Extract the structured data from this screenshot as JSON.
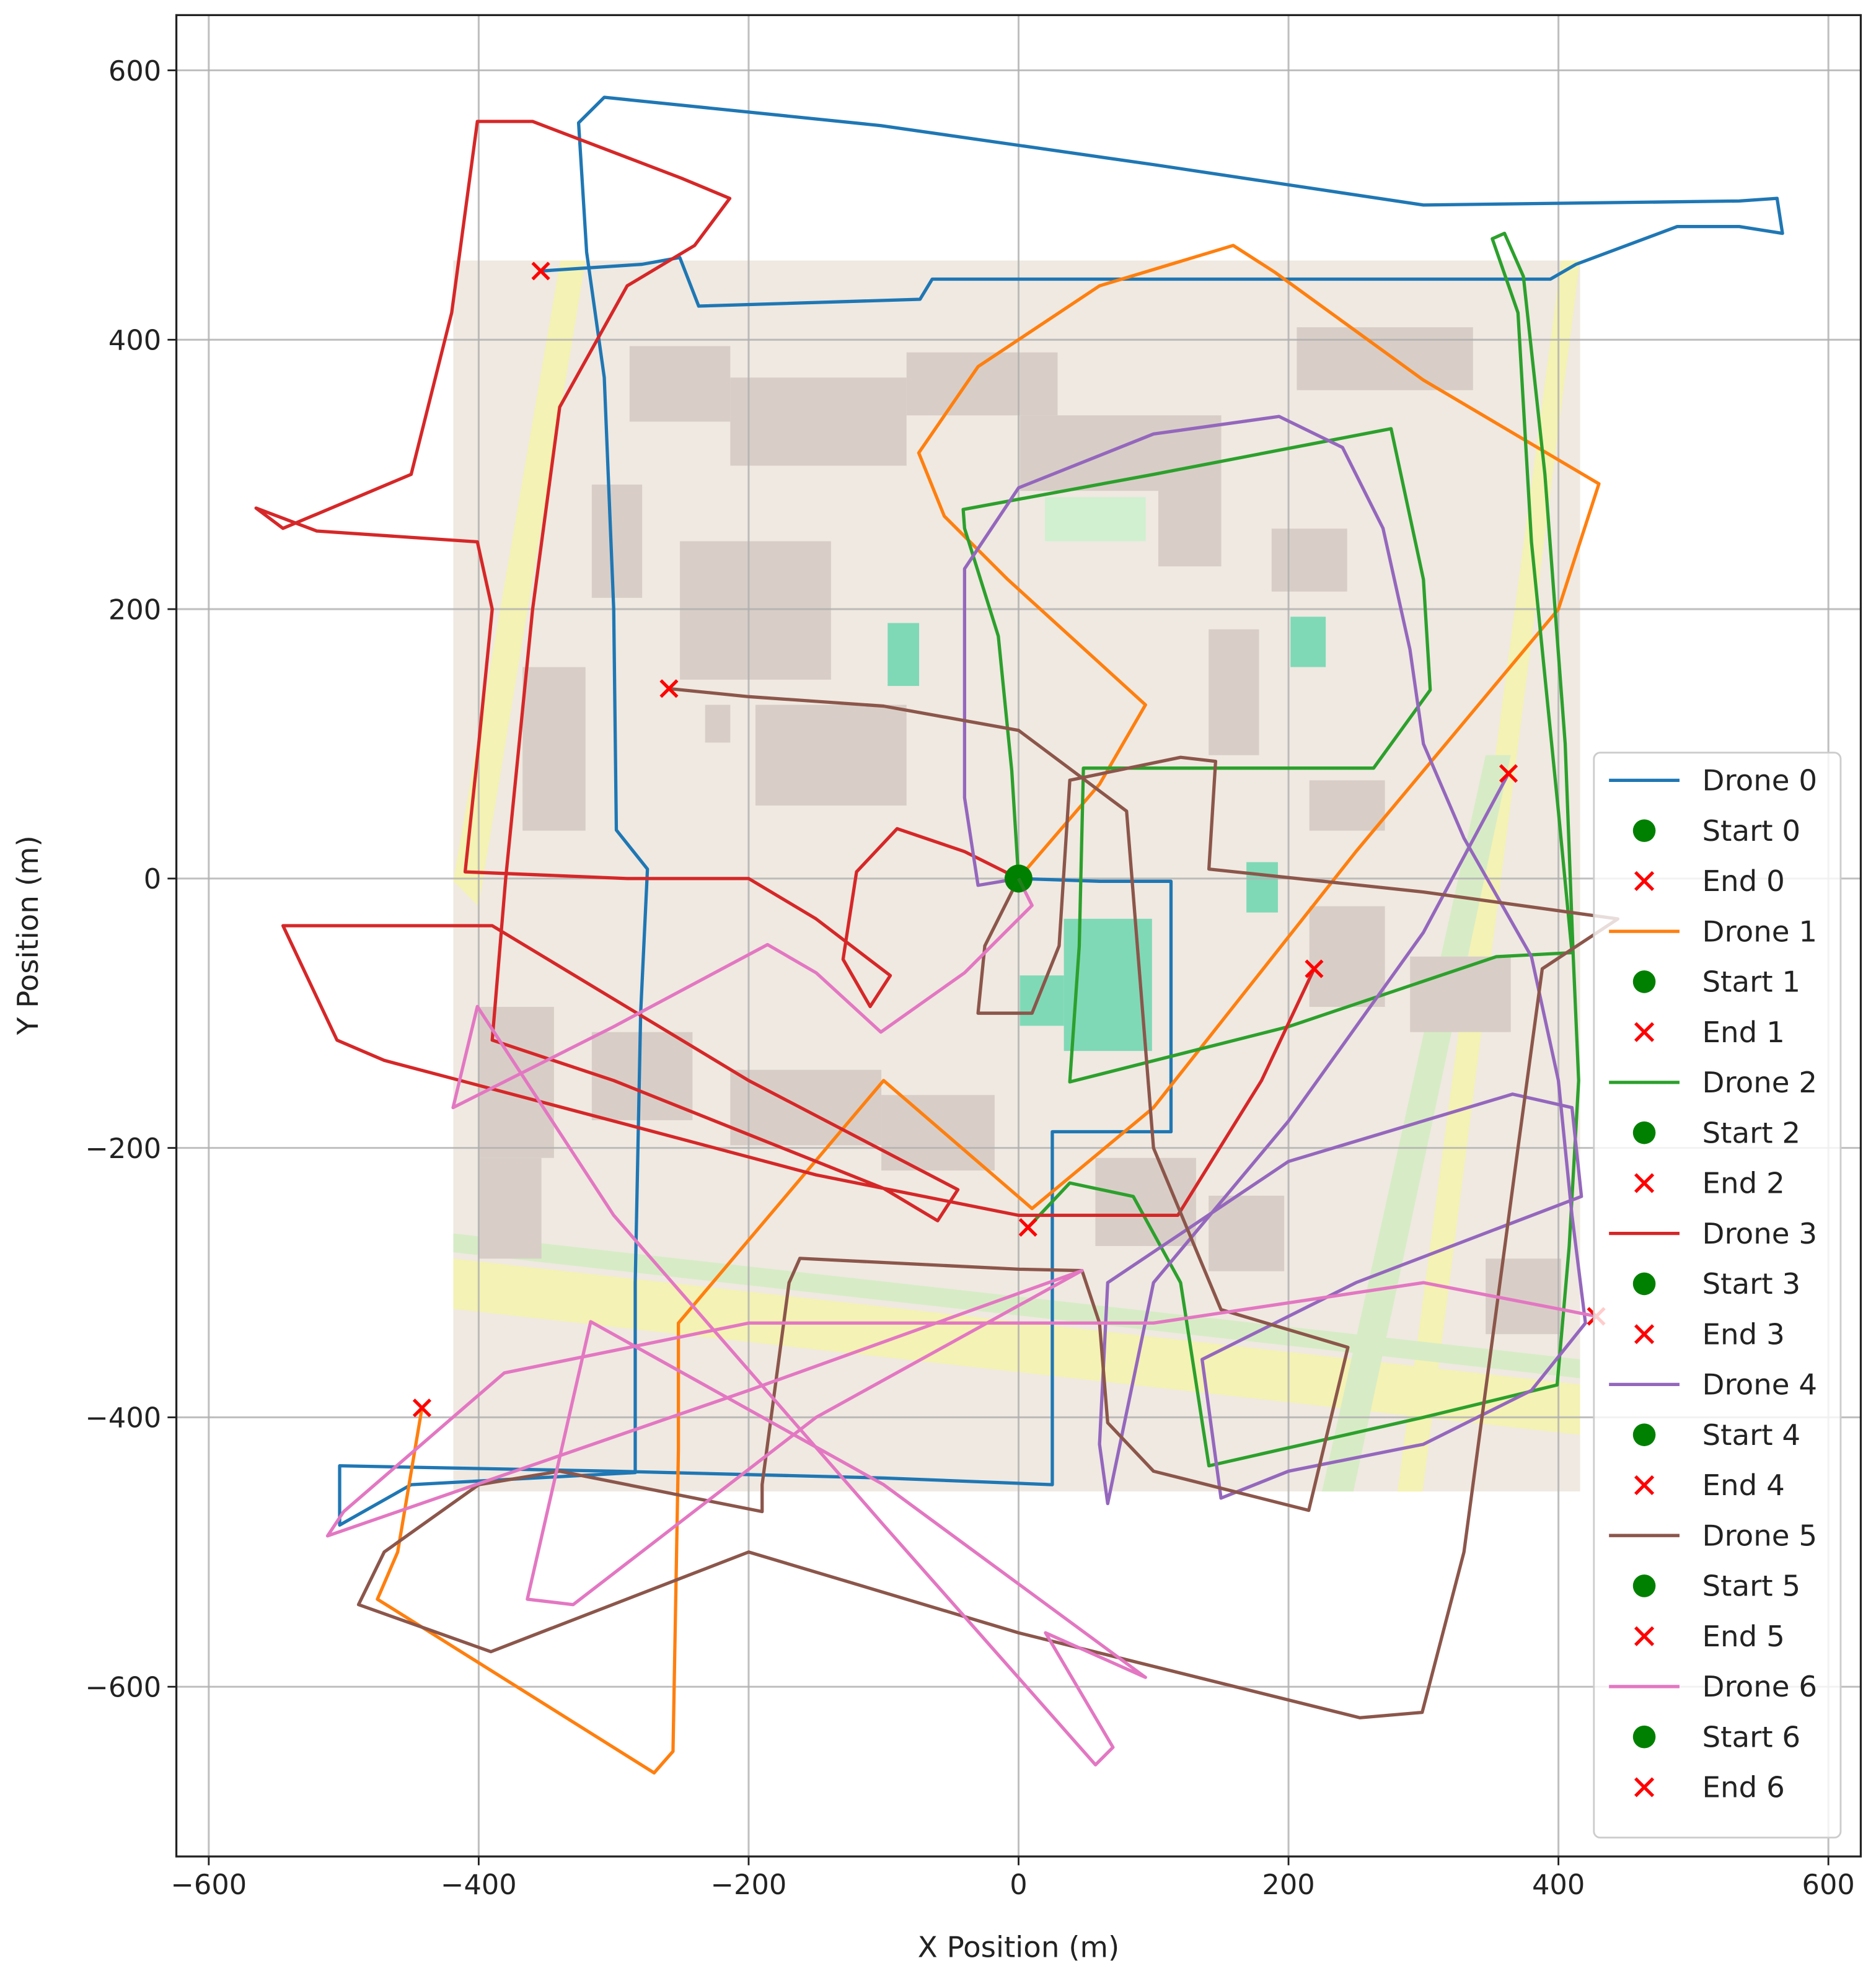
{
  "chart_data": {
    "type": "line",
    "xlabel": "X Position (m)",
    "ylabel": "Y Position (m)",
    "xlim": [
      -624,
      624
    ],
    "ylim": [
      -726,
      641
    ],
    "xticks": [
      {
        "value": -600,
        "label": "−600"
      },
      {
        "value": -400,
        "label": "−400"
      },
      {
        "value": -200,
        "label": "−200"
      },
      0,
      200,
      400,
      600
    ],
    "yticks": [
      {
        "value": -600,
        "label": "−600"
      },
      {
        "value": -400,
        "label": "−400"
      },
      {
        "value": -200,
        "label": "−200"
      },
      0,
      200,
      400,
      600
    ],
    "grid": true,
    "legend": "lower right",
    "series": [
      {
        "name": "Drone 0",
        "style": "line",
        "color": "#1f77b4",
        "x": [
          0,
          60,
          113,
          113,
          25,
          25,
          25,
          -100,
          -300,
          -503,
          -503,
          -450,
          -284,
          -284,
          -280,
          -275,
          -298,
          -300,
          -307,
          -320,
          -326,
          -307,
          -102,
          100,
          300,
          534,
          562,
          566,
          534,
          488,
          413,
          394,
          -64,
          -73,
          -237,
          -251,
          -279,
          -354
        ],
        "y": [
          0,
          -2,
          -2,
          -188,
          -188,
          -300,
          -450,
          -445,
          -440,
          -436,
          -480,
          -450,
          -441,
          -300,
          -100,
          7,
          36,
          200,
          372,
          465,
          561,
          580,
          559,
          530,
          500,
          503,
          505,
          479,
          484,
          484,
          456,
          445,
          445,
          430,
          425,
          461,
          456,
          451
        ]
      },
      {
        "name": "Start 0",
        "style": "dot",
        "color": "green",
        "x": [
          0
        ],
        "y": [
          0
        ]
      },
      {
        "name": "End 0",
        "style": "cross",
        "color": "red",
        "x": [
          -354
        ],
        "y": [
          451
        ]
      },
      {
        "name": "Drone 1",
        "style": "line",
        "color": "#ff7f0e",
        "x": [
          0,
          60,
          94,
          -8,
          -55,
          -74,
          -30,
          60,
          159,
          190,
          300,
          430,
          400,
          250,
          100,
          10,
          -100,
          -252,
          -252,
          -256,
          -270,
          -475,
          -460,
          -442
        ],
        "y": [
          0,
          70,
          129,
          222,
          269,
          316,
          380,
          440,
          470,
          450,
          370,
          293,
          200,
          20,
          -170,
          -245,
          -150,
          -330,
          -424,
          -648,
          -664,
          -535,
          -500,
          -393
        ]
      },
      {
        "name": "Start 1",
        "style": "dot",
        "color": "green",
        "x": [
          0
        ],
        "y": [
          0
        ]
      },
      {
        "name": "End 1",
        "style": "cross",
        "color": "red",
        "x": [
          -442
        ],
        "y": [
          -393
        ]
      },
      {
        "name": "Drone 2",
        "style": "line",
        "color": "#2ca02c",
        "x": [
          0,
          -5,
          -15,
          -40,
          -41,
          100,
          276,
          300,
          305,
          263,
          48,
          45,
          38,
          200,
          354,
          410,
          400,
          380,
          370,
          351,
          360,
          374,
          390,
          405,
          411,
          415,
          408,
          399,
          300,
          141,
          120,
          85,
          38,
          7
        ],
        "y": [
          0,
          80,
          180,
          260,
          274,
          300,
          334,
          222,
          140,
          82,
          82,
          -50,
          -151,
          -110,
          -58,
          -55,
          50,
          250,
          420,
          475,
          479,
          447,
          300,
          100,
          -58,
          -150,
          -273,
          -376,
          -400,
          -436,
          -300,
          -236,
          -226,
          -259
        ]
      },
      {
        "name": "Start 2",
        "style": "dot",
        "color": "green",
        "x": [
          0
        ],
        "y": [
          0
        ]
      },
      {
        "name": "End 2",
        "style": "cross",
        "color": "red",
        "x": [
          7
        ],
        "y": [
          -259
        ]
      },
      {
        "name": "Drone 3",
        "style": "line",
        "color": "#d62728",
        "x": [
          0,
          -40,
          -90,
          -120,
          -130,
          -110,
          -95,
          -150,
          -200,
          -290,
          -410,
          -400,
          -390,
          -401,
          -520,
          -565,
          -545,
          -450,
          -420,
          -401,
          -360,
          -250,
          -214,
          -240,
          -290,
          -340,
          -360,
          -380,
          -390,
          -300,
          -200,
          -100,
          -60,
          -45,
          -200,
          -390,
          -545,
          -505,
          -470,
          -300,
          -150,
          0,
          118,
          180,
          219
        ],
        "y": [
          0,
          20,
          37,
          5,
          -60,
          -95,
          -72,
          -30,
          0,
          0,
          5,
          100,
          200,
          250,
          258,
          275,
          260,
          300,
          420,
          562,
          562,
          520,
          505,
          470,
          440,
          350,
          200,
          0,
          -120,
          -150,
          -190,
          -230,
          -254,
          -231,
          -150,
          -35,
          -35,
          -120,
          -135,
          -180,
          -220,
          -250,
          -250,
          -150,
          -67
        ]
      },
      {
        "name": "Start 3",
        "style": "dot",
        "color": "green",
        "x": [
          0
        ],
        "y": [
          0
        ]
      },
      {
        "name": "End 3",
        "style": "cross",
        "color": "red",
        "x": [
          219
        ],
        "y": [
          -67
        ]
      },
      {
        "name": "Drone 4",
        "style": "line",
        "color": "#9467bd",
        "x": [
          0,
          -30,
          -40,
          -40,
          0,
          100,
          193,
          240,
          270,
          290,
          300,
          330,
          380,
          400,
          410,
          420,
          380,
          300,
          200,
          150,
          136,
          250,
          417,
          410,
          366,
          200,
          66,
          60,
          66,
          100,
          200,
          300,
          363
        ],
        "y": [
          0,
          -5,
          60,
          230,
          290,
          330,
          343,
          320,
          260,
          170,
          100,
          30,
          -58,
          -150,
          -250,
          -330,
          -380,
          -420,
          -440,
          -460,
          -357,
          -300,
          -236,
          -170,
          -160,
          -210,
          -300,
          -420,
          -464,
          -300,
          -180,
          -40,
          78
        ]
      },
      {
        "name": "Start 4",
        "style": "dot",
        "color": "green",
        "x": [
          0
        ],
        "y": [
          0
        ]
      },
      {
        "name": "End 4",
        "style": "cross",
        "color": "red",
        "x": [
          363
        ],
        "y": [
          78
        ]
      },
      {
        "name": "Drone 5",
        "style": "line",
        "color": "#8c564b",
        "x": [
          0,
          -25,
          -30,
          10,
          30,
          38,
          120,
          146,
          141,
          300,
          444,
          388,
          370,
          330,
          299,
          253,
          0,
          -200,
          -391,
          -489,
          -470,
          -400,
          -340,
          -190,
          -190,
          -170,
          -162,
          0,
          47,
          60,
          66,
          100,
          215,
          244,
          150,
          100,
          80,
          0,
          -100,
          -200,
          -259
        ],
        "y": [
          0,
          -50,
          -100,
          -100,
          -50,
          73,
          90,
          87,
          7,
          -10,
          -30,
          -67,
          -200,
          -500,
          -619,
          -623,
          -560,
          -500,
          -574,
          -539,
          -500,
          -450,
          -440,
          -470,
          -450,
          -300,
          -282,
          -290,
          -291,
          -330,
          -404,
          -440,
          -469,
          -348,
          -320,
          -200,
          50,
          110,
          128,
          135,
          141
        ]
      },
      {
        "name": "Start 5",
        "style": "dot",
        "color": "green",
        "x": [
          0
        ],
        "y": [
          0
        ]
      },
      {
        "name": "End 5",
        "style": "cross",
        "color": "red",
        "x": [
          -259
        ],
        "y": [
          141
        ]
      },
      {
        "name": "Drone 6",
        "style": "line",
        "color": "#e377c2",
        "x": [
          0,
          10,
          -40,
          -102,
          -150,
          -186,
          -300,
          -419,
          -401,
          -300,
          -100,
          57,
          70,
          20,
          94,
          -100,
          -317,
          -364,
          -330,
          -150,
          47,
          -200,
          -512,
          -500,
          -381,
          -200,
          100,
          300,
          428
        ],
        "y": [
          0,
          -20,
          -70,
          -114,
          -70,
          -49,
          -110,
          -170,
          -95,
          -250,
          -480,
          -658,
          -645,
          -560,
          -593,
          -450,
          -329,
          -535,
          -539,
          -400,
          -291,
          -380,
          -488,
          -470,
          -367,
          -330,
          -330,
          -300,
          -325
        ]
      },
      {
        "name": "Start 6",
        "style": "dot",
        "color": "green",
        "x": [
          0
        ],
        "y": [
          0
        ]
      },
      {
        "name": "End 6",
        "style": "cross",
        "color": "red",
        "x": [
          428
        ],
        "y": [
          -325
        ]
      }
    ]
  }
}
